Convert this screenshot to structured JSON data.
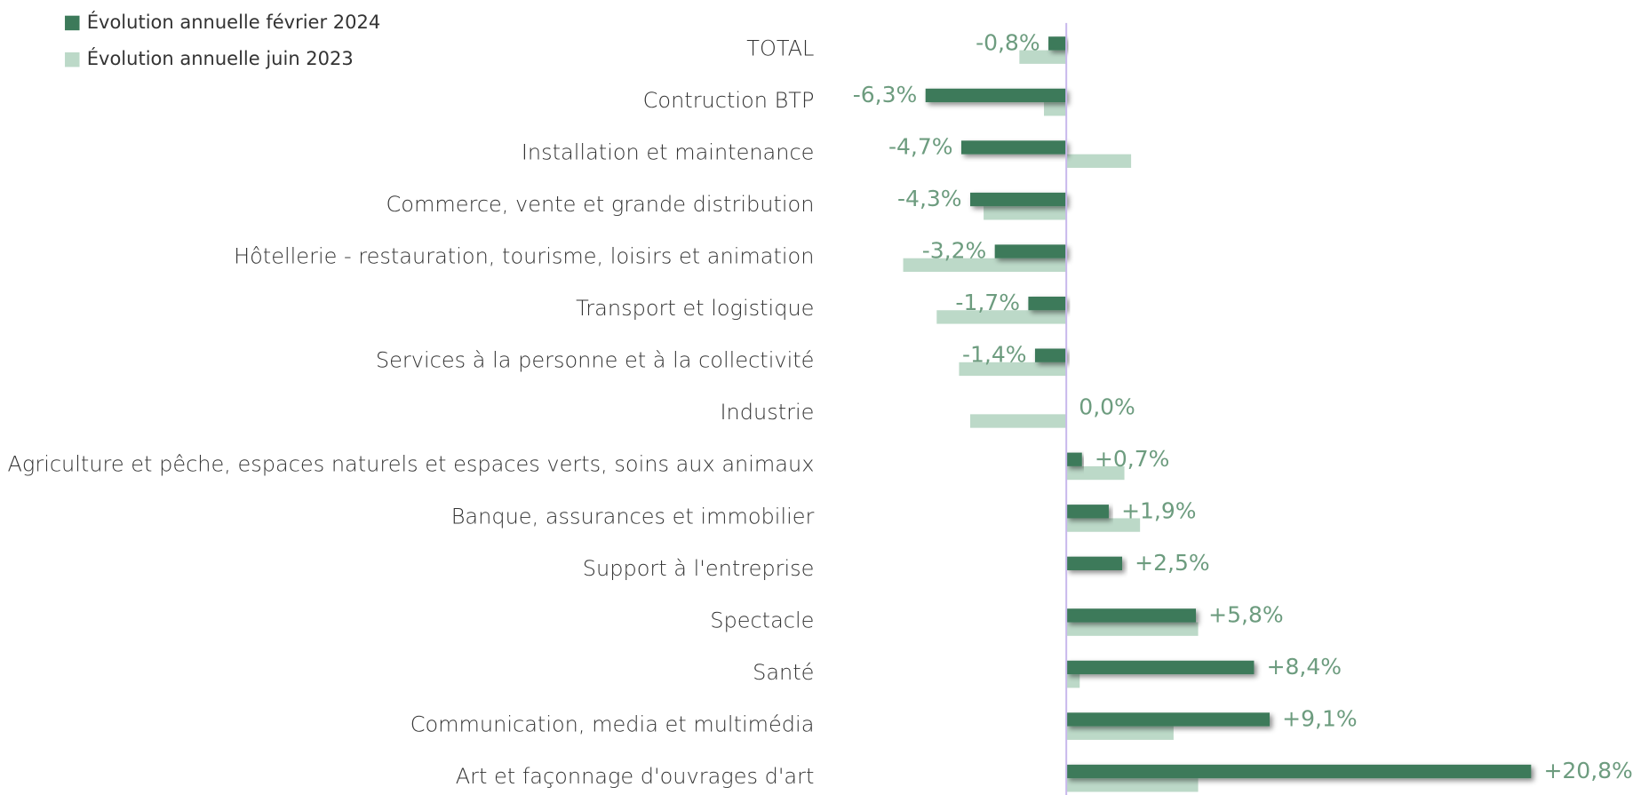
{
  "chart_data": {
    "type": "bar",
    "orientation": "horizontal",
    "categories": [
      "TOTAL",
      "Contruction BTP",
      "Installation et maintenance",
      "Commerce, vente et grande distribution",
      "Hôtellerie - restauration, tourisme, loisirs et animation",
      "Transport et logistique",
      "Services à la personne et à la collectivité",
      "Industrie",
      "Agriculture et pêche, espaces naturels et espaces verts, soins aux animaux",
      "Banque, assurances et immobilier",
      "Support à l'entreprise",
      "Spectacle",
      "Santé",
      "Communication, media et multimédia",
      "Art  et façonnage d'ouvrages d'art"
    ],
    "series": [
      {
        "name": "Évolution annuelle février 2024",
        "color": "#3c7a5a",
        "values": [
          -0.8,
          -6.3,
          -4.7,
          -4.3,
          -3.2,
          -1.7,
          -1.4,
          0.0,
          0.7,
          1.9,
          2.5,
          5.8,
          8.4,
          9.1,
          20.8
        ],
        "value_labels": [
          "-0,8%",
          "-6,3%",
          "-4,7%",
          "-4,3%",
          "-3,2%",
          "-1,7%",
          "-1,4%",
          "0,0%",
          "+0,7%",
          "+1,9%",
          "+2,5%",
          "+5,8%",
          "+8,4%",
          "+9,1%",
          "+20,8%"
        ]
      },
      {
        "name": "Évolution annuelle juin 2023",
        "color": "#bcd9c8",
        "values": [
          -2.1,
          -1.0,
          2.9,
          -3.7,
          -7.3,
          -5.8,
          -4.8,
          -4.3,
          2.6,
          3.3,
          0.0,
          5.9,
          0.6,
          4.8,
          5.9
        ]
      }
    ],
    "legend": "top-left"
  }
}
